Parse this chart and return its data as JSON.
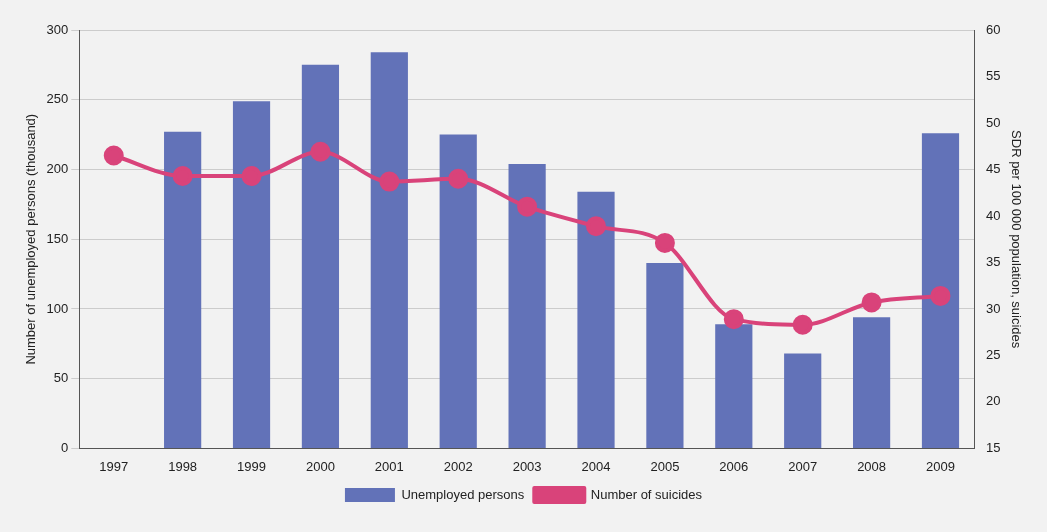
{
  "chart_data": {
    "type": "bar",
    "categories": [
      "1997",
      "1998",
      "1999",
      "2000",
      "2001",
      "2002",
      "2003",
      "2004",
      "2005",
      "2006",
      "2007",
      "2008",
      "2009"
    ],
    "ylabel": "Number of unemployed persons (thousand)",
    "y2label": "SDR per 100 000 population, suicides",
    "series": [
      {
        "name": "Unemployed persons",
        "color": "#6272b8",
        "values": [
          null,
          227,
          249,
          275,
          284,
          225,
          204,
          184,
          133,
          89,
          68,
          94,
          226
        ]
      },
      {
        "name": "Number of suicides",
        "type": "line",
        "axis": "y2",
        "color": "#d9437a",
        "marker": "circle",
        "values": [
          46.5,
          44.3,
          44.3,
          46.9,
          43.7,
          44.0,
          41.0,
          38.9,
          37.1,
          28.9,
          28.3,
          30.7,
          31.4
        ]
      }
    ],
    "ylim": [
      0,
      300
    ],
    "yticks": [
      0,
      50,
      100,
      150,
      200,
      250,
      300
    ],
    "y2lim": [
      15,
      60
    ],
    "y2ticks": [
      15,
      20,
      25,
      30,
      35,
      40,
      45,
      50,
      55,
      60
    ],
    "grid": "y",
    "legend": "bottom"
  }
}
